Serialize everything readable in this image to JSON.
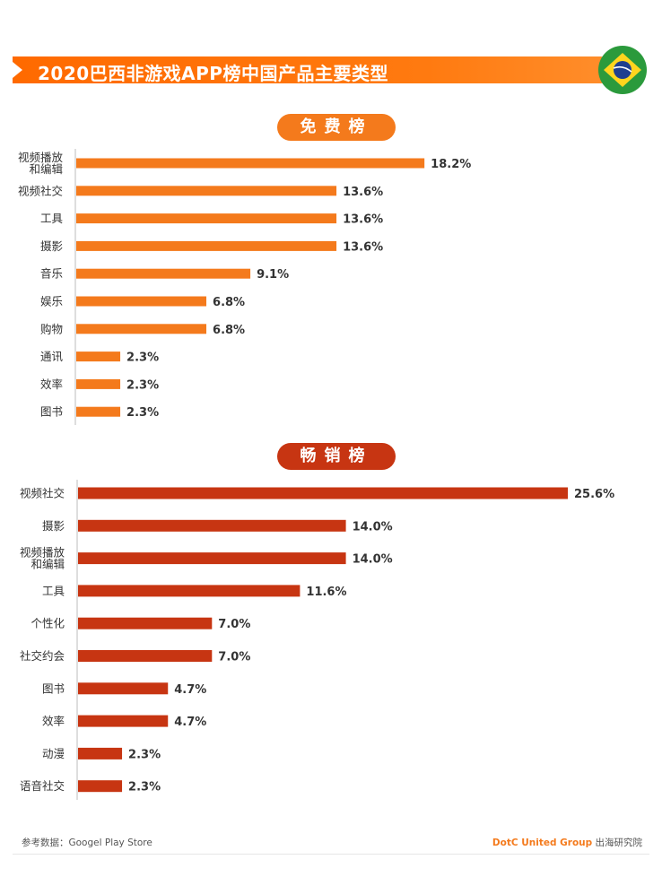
{
  "header": {
    "title": "2020巴西非游戏APP榜中国产品主要类型",
    "flag_icon": "brazil-flag-icon"
  },
  "colors": {
    "free_bar": "#f47a1c",
    "paid_bar": "#c73512",
    "title_bar": "#ff6a00"
  },
  "chart_data": [
    {
      "type": "bar",
      "orientation": "horizontal",
      "title": "免费榜",
      "categories": [
        "视频播放\n和编辑",
        "视频社交",
        "工具",
        "摄影",
        "音乐",
        "娱乐",
        "购物",
        "通讯",
        "效率",
        "图书"
      ],
      "values": [
        18.2,
        13.6,
        13.6,
        13.6,
        9.1,
        6.8,
        6.8,
        2.3,
        2.3,
        2.3
      ],
      "value_labels": [
        "18.2%",
        "13.6%",
        "13.6%",
        "13.6%",
        "9.1%",
        "6.8%",
        "6.8%",
        "2.3%",
        "2.3%",
        "2.3%"
      ],
      "unit": "%",
      "xlim": [
        0,
        25.6
      ]
    },
    {
      "type": "bar",
      "orientation": "horizontal",
      "title": "畅销榜",
      "categories": [
        "视频社交",
        "摄影",
        "视频播放\n和编辑",
        "工具",
        "个性化",
        "社交约会",
        "图书",
        "效率",
        "动漫",
        "语音社交"
      ],
      "values": [
        25.6,
        14.0,
        14.0,
        11.6,
        7.0,
        7.0,
        4.7,
        4.7,
        2.3,
        2.3
      ],
      "value_labels": [
        "25.6%",
        "14.0%",
        "14.0%",
        "11.6%",
        "7.0%",
        "7.0%",
        "4.7%",
        "4.7%",
        "2.3%",
        "2.3%"
      ],
      "unit": "%",
      "xlim": [
        0,
        25.6
      ]
    }
  ],
  "footer": {
    "source": "参考数据：Googel Play Store",
    "brand": "DotC United Group",
    "brand_suffix": " 出海研究院"
  }
}
